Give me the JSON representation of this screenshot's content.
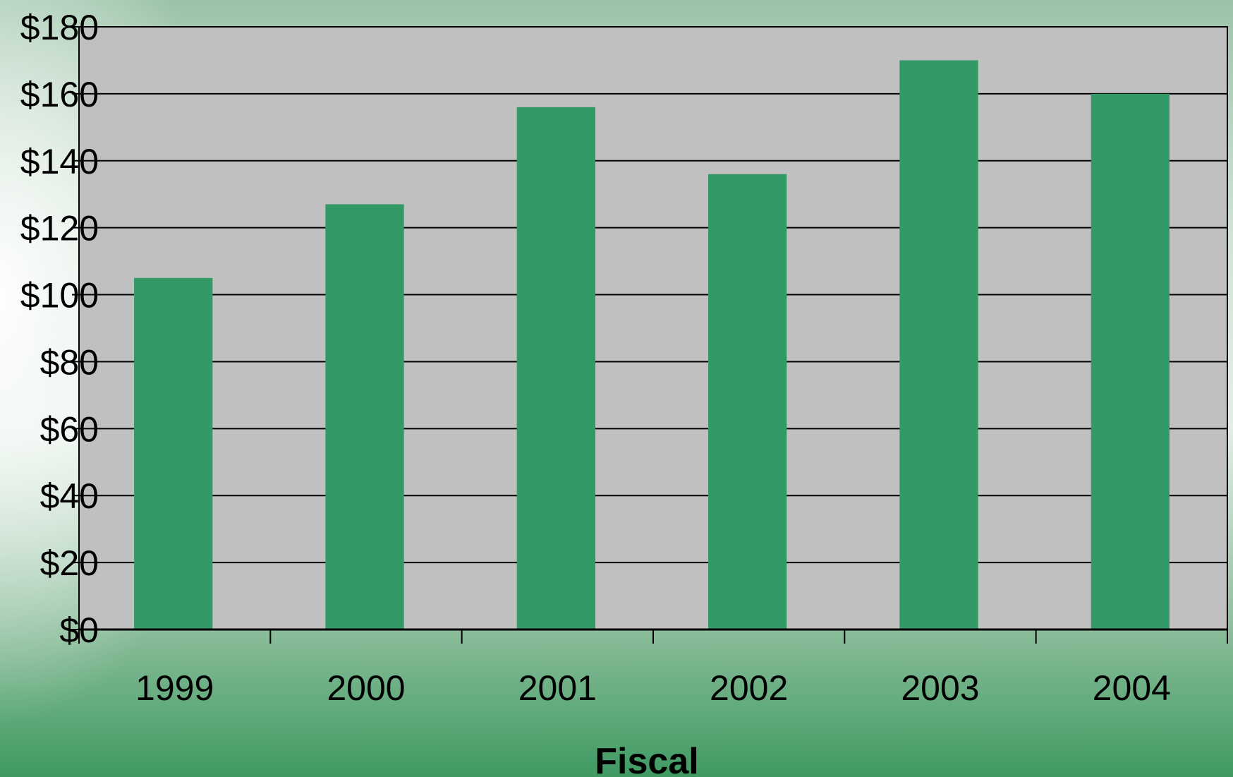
{
  "chart_data": {
    "type": "bar",
    "categories": [
      "1999",
      "2000",
      "2001",
      "2002",
      "2003",
      "2004"
    ],
    "series": [
      {
        "values": [
          105,
          127,
          156,
          136,
          170,
          160
        ]
      }
    ],
    "y_tick_labels": [
      "$0",
      "$20",
      "$40",
      "$60",
      "$80",
      "$100",
      "$120",
      "$140",
      "$160",
      "$180"
    ],
    "ylim": [
      0,
      180
    ],
    "xlabel": "Fiscal",
    "ylabel": "",
    "title": "",
    "grid": true,
    "legend": "none",
    "colors": {
      "bar": "#339966",
      "plot_area": "#c0c0c0",
      "gridline": "#000000"
    }
  }
}
